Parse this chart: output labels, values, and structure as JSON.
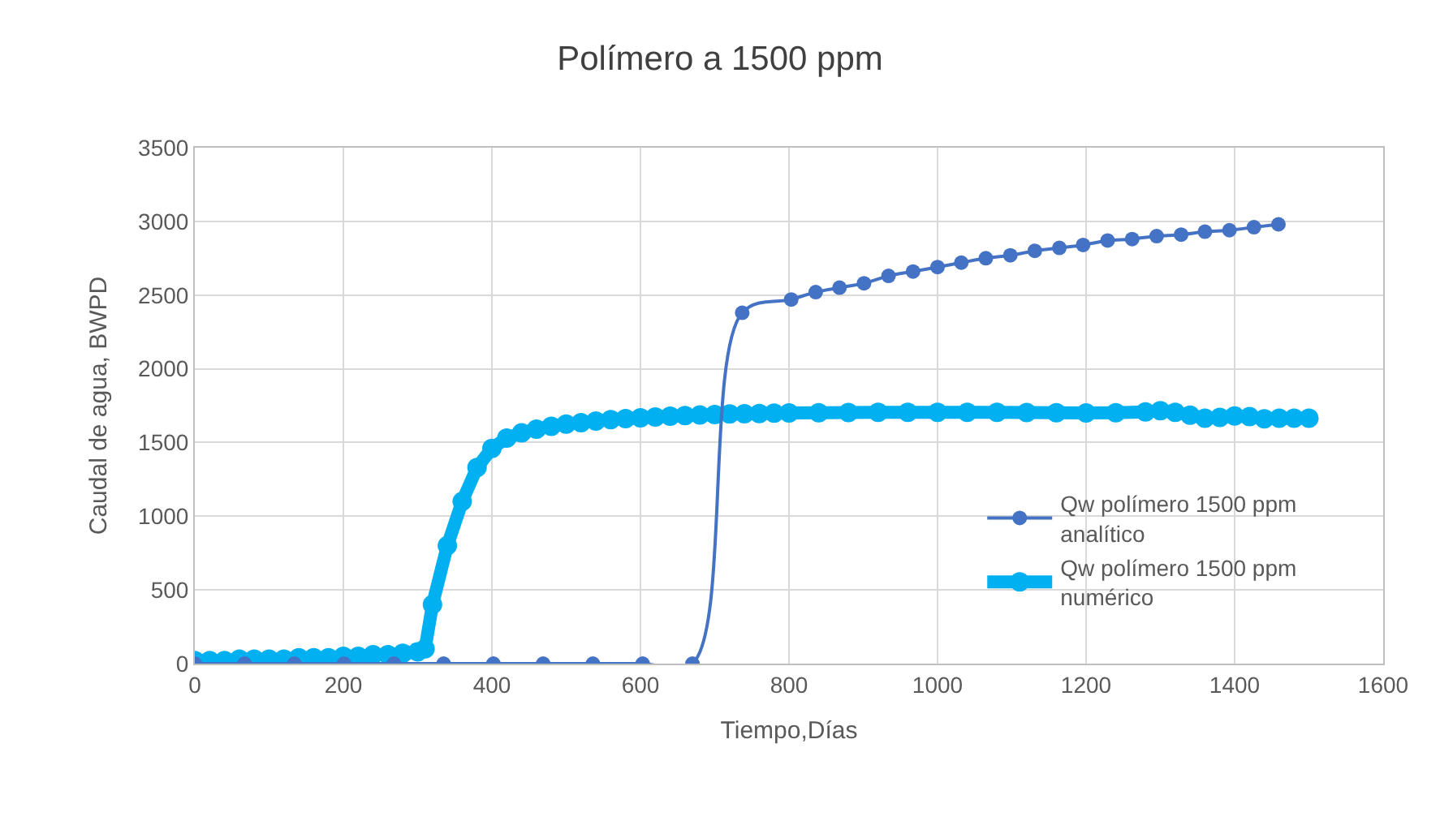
{
  "chart_data": {
    "type": "line",
    "title": "Polímero a 1500 ppm",
    "xlabel": "Tiempo,Días",
    "ylabel": "Caudal de agua, BWPD",
    "xlim": [
      0,
      1600
    ],
    "xticks": [
      0,
      200,
      400,
      600,
      800,
      1000,
      1200,
      1400,
      1600
    ],
    "ylim": [
      0,
      3500
    ],
    "yticks": [
      0,
      500,
      1000,
      1500,
      2000,
      2500,
      3000,
      3500
    ],
    "grid": true,
    "legend": "right",
    "marker": "circle",
    "line_style": "solid",
    "series": [
      {
        "name": "Qw polímero 1500 ppm analítico",
        "color": "#4472c4",
        "x": [
          0,
          67,
          134,
          201,
          268,
          335,
          402,
          469,
          536,
          603,
          670,
          737,
          803,
          836,
          868,
          901,
          934,
          967,
          1000,
          1032,
          1065,
          1098,
          1131,
          1164,
          1196,
          1229,
          1262,
          1295,
          1328,
          1360,
          1393,
          1426,
          1459
        ],
        "values": [
          0,
          0,
          0,
          0,
          0,
          0,
          0,
          0,
          0,
          0,
          0,
          2380,
          2470,
          2520,
          2550,
          2580,
          2630,
          2660,
          2690,
          2720,
          2750,
          2770,
          2800,
          2820,
          2840,
          2870,
          2880,
          2900,
          2910,
          2930,
          2940,
          2960,
          2980
        ]
      },
      {
        "name": "Qw polímero 1500 ppm numérico",
        "color": "#00b0f0",
        "x": [
          0,
          20,
          40,
          60,
          80,
          100,
          120,
          140,
          160,
          180,
          200,
          220,
          240,
          260,
          280,
          300,
          310,
          320,
          340,
          360,
          380,
          400,
          420,
          440,
          460,
          480,
          500,
          520,
          540,
          560,
          580,
          600,
          620,
          640,
          660,
          680,
          700,
          720,
          740,
          760,
          780,
          800,
          840,
          880,
          920,
          960,
          1000,
          1040,
          1080,
          1120,
          1160,
          1200,
          1240,
          1280,
          1300,
          1320,
          1340,
          1360,
          1380,
          1400,
          1420,
          1440,
          1460,
          1480,
          1500
        ],
        "values": [
          20,
          20,
          20,
          30,
          30,
          30,
          30,
          40,
          40,
          40,
          50,
          50,
          60,
          60,
          70,
          80,
          100,
          400,
          800,
          1100,
          1330,
          1460,
          1530,
          1565,
          1590,
          1610,
          1625,
          1635,
          1645,
          1655,
          1662,
          1668,
          1673,
          1678,
          1682,
          1686,
          1690,
          1693,
          1695,
          1697,
          1699,
          1700,
          1702,
          1703,
          1704,
          1705,
          1705,
          1705,
          1704,
          1703,
          1702,
          1700,
          1702,
          1708,
          1715,
          1705,
          1685,
          1665,
          1670,
          1680,
          1675,
          1660,
          1665,
          1665,
          1665
        ]
      }
    ]
  }
}
